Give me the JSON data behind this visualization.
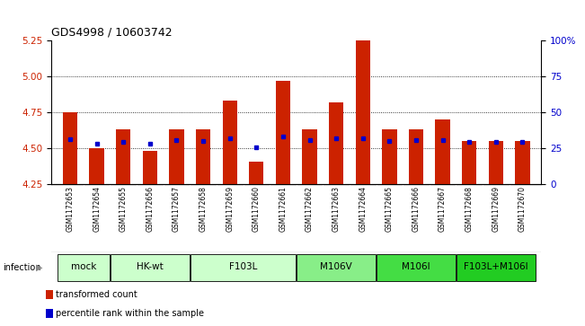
{
  "title": "GDS4998 / 10603742",
  "samples": [
    "GSM1172653",
    "GSM1172654",
    "GSM1172655",
    "GSM1172656",
    "GSM1172657",
    "GSM1172658",
    "GSM1172659",
    "GSM1172660",
    "GSM1172661",
    "GSM1172662",
    "GSM1172663",
    "GSM1172664",
    "GSM1172665",
    "GSM1172666",
    "GSM1172667",
    "GSM1172668",
    "GSM1172669",
    "GSM1172670"
  ],
  "bar_values": [
    4.75,
    4.5,
    4.63,
    4.48,
    4.63,
    4.63,
    4.83,
    4.41,
    4.97,
    4.63,
    4.82,
    5.25,
    4.63,
    4.63,
    4.7,
    4.55,
    4.55,
    4.55
  ],
  "percentile_values": [
    4.565,
    4.532,
    4.545,
    4.532,
    4.558,
    4.548,
    4.572,
    4.51,
    4.582,
    4.558,
    4.568,
    4.57,
    4.548,
    4.558,
    4.558,
    4.542,
    4.542,
    4.542
  ],
  "ylim_left": [
    4.25,
    5.25
  ],
  "ylim_right": [
    0,
    100
  ],
  "yticks_left": [
    4.25,
    4.5,
    4.75,
    5.0,
    5.25
  ],
  "yticks_right": [
    0,
    25,
    50,
    75,
    100
  ],
  "ytick_right_labels": [
    "0",
    "25",
    "50",
    "75",
    "100%"
  ],
  "hlines": [
    4.5,
    4.75,
    5.0
  ],
  "bar_color": "#cc2200",
  "dot_color": "#0000cc",
  "sample_bg": "#c8c8c8",
  "group_data": [
    {
      "label": "mock",
      "start": 0,
      "end": 1,
      "color": "#ccffcc"
    },
    {
      "label": "HK-wt",
      "start": 2,
      "end": 4,
      "color": "#ccffcc"
    },
    {
      "label": "F103L",
      "start": 5,
      "end": 8,
      "color": "#ccffcc"
    },
    {
      "label": "M106V",
      "start": 9,
      "end": 11,
      "color": "#88ee88"
    },
    {
      "label": "M106I",
      "start": 12,
      "end": 14,
      "color": "#44dd44"
    },
    {
      "label": "F103L+M106I",
      "start": 15,
      "end": 17,
      "color": "#22cc22"
    }
  ],
  "infection_label": "infection",
  "legend_items": [
    {
      "color": "#cc2200",
      "label": "transformed count"
    },
    {
      "color": "#0000cc",
      "label": "percentile rank within the sample"
    }
  ]
}
